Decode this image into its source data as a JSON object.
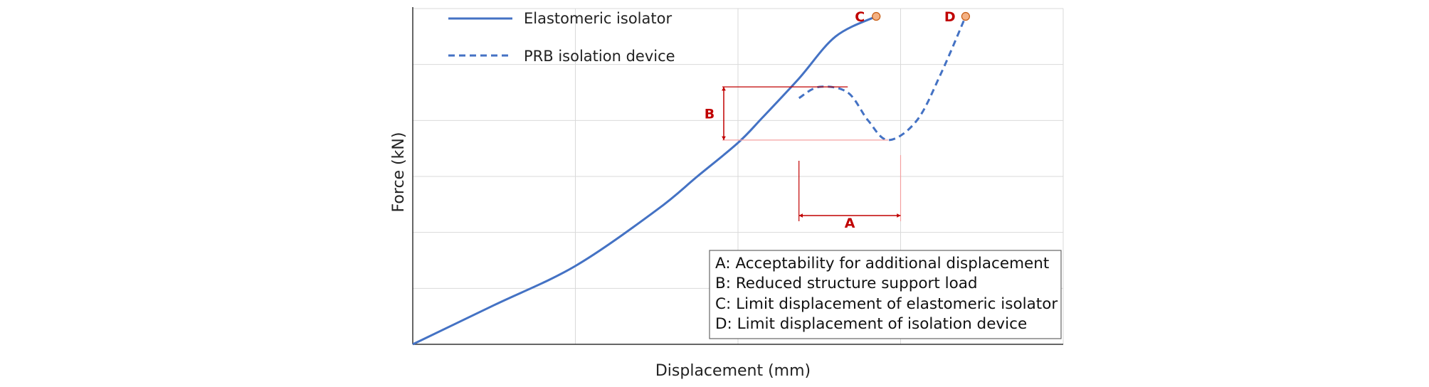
{
  "chart_data": {
    "type": "line",
    "xlabel": "Displacement (mm)",
    "ylabel": "Force (kN)",
    "xlim": [
      0,
      8
    ],
    "ylim": [
      0,
      6
    ],
    "grid": true,
    "legend_position": "top-left",
    "series": [
      {
        "name": "Elastomeric isolator",
        "style": "solid",
        "color": "#4472c4",
        "x": [
          0,
          1,
          2,
          3,
          3.5,
          4,
          4.3,
          4.75,
          5.2,
          5.7
        ],
        "y": [
          0,
          0.7,
          1.4,
          2.4,
          3.0,
          3.6,
          4.05,
          4.75,
          5.5,
          5.86
        ]
      },
      {
        "name": "PRB isolation device",
        "style": "dashed",
        "color": "#4472c4",
        "x": [
          4.75,
          5.0,
          5.35,
          5.6,
          5.85,
          6.2,
          6.5,
          6.8
        ],
        "y": [
          4.4,
          4.6,
          4.5,
          4.0,
          3.65,
          4.0,
          4.85,
          5.86
        ]
      }
    ],
    "points": [
      {
        "label": "C",
        "x": 5.7,
        "y": 5.86
      },
      {
        "label": "D",
        "x": 6.8,
        "y": 5.86
      }
    ],
    "dimensions": [
      {
        "label": "A",
        "orientation": "horizontal",
        "from_x": 4.75,
        "to_x": 6.0
      },
      {
        "label": "B",
        "orientation": "vertical",
        "from_y": 3.65,
        "to_y": 4.6
      }
    ],
    "annotations": [
      "A: Acceptability for additional displacement",
      "B: Reduced structure support load",
      "C: Limit displacement of elastomeric isolator",
      "D: Limit displacement of isolation device"
    ],
    "colors": {
      "curve": "#4472c4",
      "dimension": "#c00000",
      "point_fill": "#f4b183",
      "point_stroke": "#c55a11"
    }
  }
}
